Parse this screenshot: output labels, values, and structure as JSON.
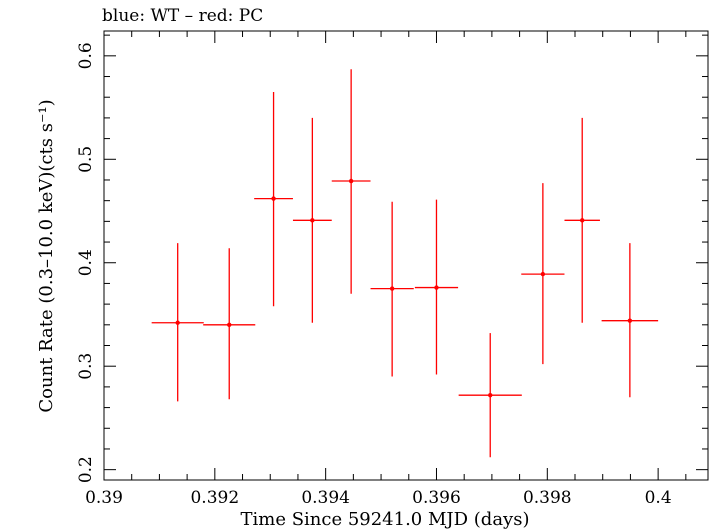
{
  "chart_data": {
    "type": "scatter",
    "title": "blue: WT – red: PC",
    "xlabel": "Time Since 59241.0 MJD (days)",
    "ylabel": "Count Rate (0.3–10.0 keV)(cts s⁻¹)",
    "xlim": [
      0.39,
      0.4009
    ],
    "ylim": [
      0.19,
      0.624
    ],
    "xticks": [
      0.39,
      0.392,
      0.394,
      0.396,
      0.398,
      0.4
    ],
    "xtick_labels": [
      "0.39",
      "0.392",
      "0.394",
      "0.396",
      "0.398",
      "0.4"
    ],
    "yticks": [
      0.2,
      0.3,
      0.4,
      0.5,
      0.6
    ],
    "ytick_labels": [
      "0.2",
      "0.3",
      "0.4",
      "0.5",
      "0.6"
    ],
    "grid": false,
    "series": [
      {
        "name": "PC",
        "color": "#ff0000",
        "points": [
          {
            "x": 0.39133,
            "y": 0.342,
            "xerr": 0.00047,
            "ylo": 0.266,
            "yhi": 0.419
          },
          {
            "x": 0.39226,
            "y": 0.34,
            "xerr": 0.00047,
            "ylo": 0.268,
            "yhi": 0.414
          },
          {
            "x": 0.39306,
            "y": 0.462,
            "xerr": 0.00035,
            "ylo": 0.358,
            "yhi": 0.565
          },
          {
            "x": 0.39376,
            "y": 0.441,
            "xerr": 0.00035,
            "ylo": 0.342,
            "yhi": 0.54
          },
          {
            "x": 0.39446,
            "y": 0.479,
            "xerr": 0.00035,
            "ylo": 0.37,
            "yhi": 0.587
          },
          {
            "x": 0.3952,
            "y": 0.375,
            "xerr": 0.00039,
            "ylo": 0.29,
            "yhi": 0.459
          },
          {
            "x": 0.396,
            "y": 0.376,
            "xerr": 0.00039,
            "ylo": 0.292,
            "yhi": 0.461
          },
          {
            "x": 0.39697,
            "y": 0.272,
            "xerr": 0.00057,
            "ylo": 0.212,
            "yhi": 0.332
          },
          {
            "x": 0.39792,
            "y": 0.389,
            "xerr": 0.00039,
            "ylo": 0.302,
            "yhi": 0.477
          },
          {
            "x": 0.39863,
            "y": 0.441,
            "xerr": 0.00032,
            "ylo": 0.342,
            "yhi": 0.54
          },
          {
            "x": 0.39949,
            "y": 0.344,
            "xerr": 0.00051,
            "ylo": 0.27,
            "yhi": 0.419
          }
        ]
      }
    ]
  }
}
